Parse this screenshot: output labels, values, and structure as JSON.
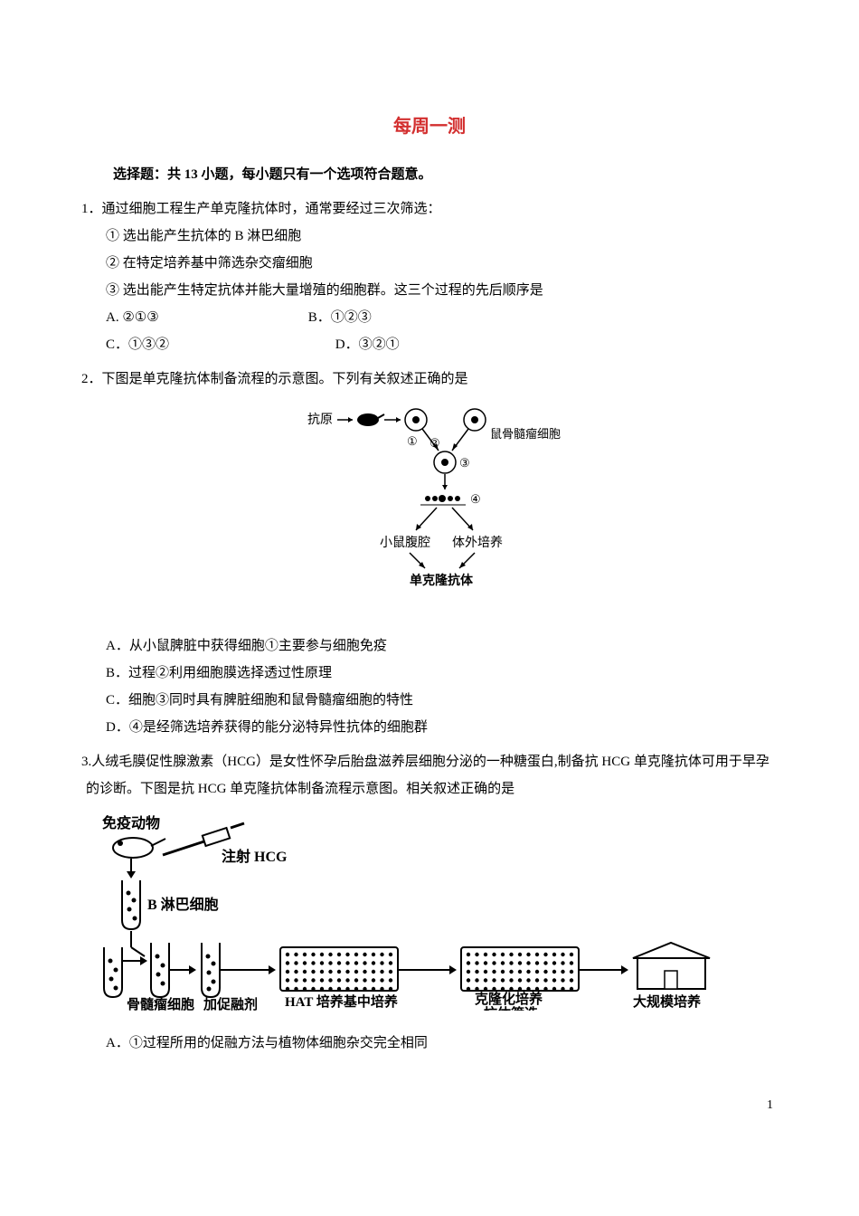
{
  "title": "每周一测",
  "instruction": "选择题：共 13 小题，每小题只有一个选项符合题意。",
  "q1": {
    "stem": "1．通过细胞工程生产单克隆抗体时，通常要经过三次筛选：",
    "sub1": "① 选出能产生抗体的 B 淋巴细胞",
    "sub2": "② 在特定培养基中筛选杂交瘤细胞",
    "sub3": "③ 选出能产生特定抗体并能大量增殖的细胞群。这三个过程的先后顺序是",
    "optA": "A. ②①③",
    "optB": "B．①②③",
    "optC": "C．①③②",
    "optD": "D．③②①"
  },
  "q2": {
    "stem": "2．下图是单克隆抗体制备流程的示意图。下列有关叙述正确的是",
    "optA": "A．从小鼠脾脏中获得细胞①主要参与细胞免疫",
    "optB": "B．过程②利用细胞膜选择透过性原理",
    "optC": "C．细胞③同时具有脾脏细胞和鼠骨髓瘤细胞的特性",
    "optD": "D．④是经筛选培养获得的能分泌特异性抗体的细胞群",
    "diagram": {
      "label_antigen": "抗原",
      "label_myeloma": "鼠骨髓瘤细胞",
      "label_abdomen": "小鼠腹腔",
      "label_invitro": "体外培养",
      "label_mab": "单克隆抗体",
      "circle1": "①",
      "circle2": "②",
      "circle3": "③",
      "circle4": "④"
    }
  },
  "q3": {
    "stem": "3.人绒毛膜促性腺激素（HCG）是女性怀孕后胎盘滋养层细胞分泌的一种糖蛋白,制备抗 HCG 单克隆抗体可用于早孕的诊断。下图是抗 HCG 单克隆抗体制备流程示意图。相关叙述正确的是",
    "optA": "A．①过程所用的促融方法与植物体细胞杂交完全相同",
    "diagram": {
      "label_immune": "免疫动物",
      "label_inject": "注射 HCG",
      "label_bcell": "B 淋巴细胞",
      "label_myeloma": "骨髓瘤细胞",
      "label_fusion": "加促融剂",
      "label_hat": "HAT 培养基中培养",
      "label_clone": "克隆化培养\n抗体筛选",
      "label_scale": "大规模培养"
    }
  },
  "page_number": "1",
  "colors": {
    "title": "#d32f2f",
    "text": "#000000",
    "bg": "#ffffff"
  }
}
